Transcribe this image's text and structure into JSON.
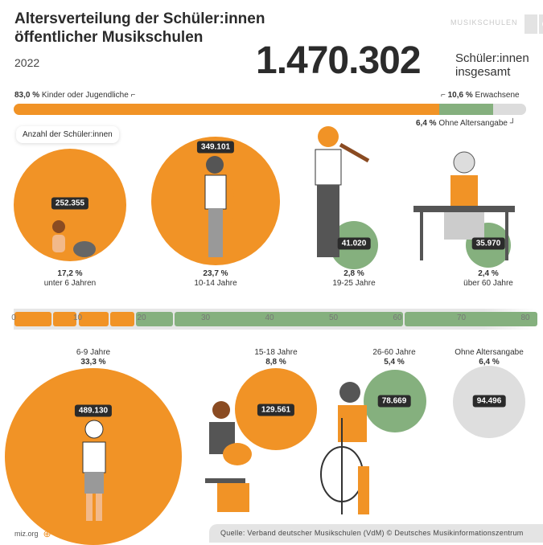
{
  "header": {
    "title": "Altersverteilung der Schüler:innen öffentlicher Musikschulen",
    "year": "2022",
    "total": "1.470.302",
    "total_label": "Schüler:innen insgesamt",
    "logo_text": "MUSIKSCHULEN"
  },
  "summary_bar": {
    "kids": {
      "pct": "83,0 %",
      "label": "Kinder oder Jugendliche",
      "value": 83.0,
      "color": "#f19326"
    },
    "adults": {
      "pct": "10,6 %",
      "label": "Erwachsene",
      "value": 10.6,
      "color": "#85b07e"
    },
    "unknown": {
      "pct": "6,4 %",
      "label": "Ohne Altersangabe",
      "value": 6.4,
      "color": "#dcdcdc"
    }
  },
  "tooltip": "Anzahl der Schüler:innen",
  "groups": [
    {
      "age": "unter 6 Jahren",
      "pct": "17,2 %",
      "count": "252.355"
    },
    {
      "age": "10-14 Jahre",
      "pct": "23,7 %",
      "count": "349.101"
    },
    {
      "age": "19-25 Jahre",
      "pct": "2,8 %",
      "count": "41.020"
    },
    {
      "age": "über 60 Jahre",
      "pct": "2,4 %",
      "count": "35.970"
    },
    {
      "age": "6-9 Jahre",
      "pct": "33,3 %",
      "count": "489.130"
    },
    {
      "age": "15-18 Jahre",
      "pct": "8,8 %",
      "count": "129.561"
    },
    {
      "age": "26-60 Jahre",
      "pct": "5,4 %",
      "count": "78.669"
    },
    {
      "age": "Ohne Altersangabe",
      "pct": "6,4 %",
      "count": "94.496"
    }
  ],
  "axis": {
    "ticks": [
      "0",
      "10",
      "20",
      "30",
      "40",
      "50",
      "60",
      "70",
      "80"
    ]
  },
  "footer": {
    "site": "miz.org",
    "source": "Quelle: Verband deutscher Musikschulen (VdM) © Deutsches Musikinformationszentrum"
  }
}
